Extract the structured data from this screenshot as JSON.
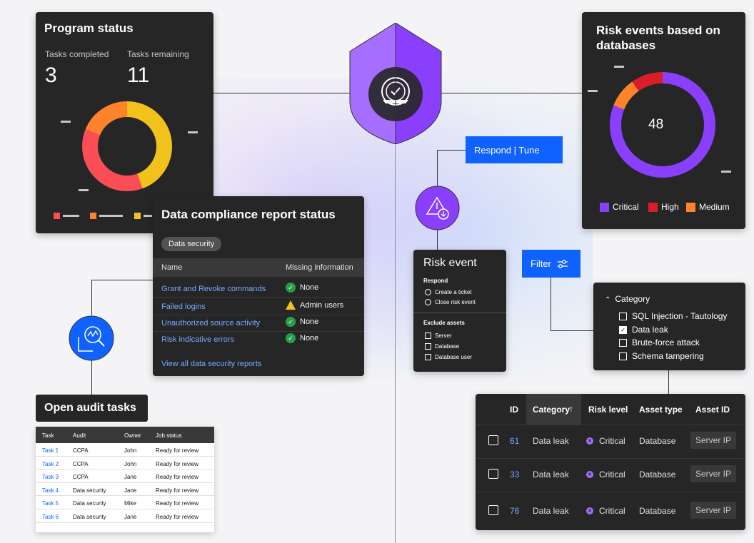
{
  "program_status": {
    "title": "Program status",
    "tasks_completed_label": "Tasks completed",
    "tasks_completed_value": "3",
    "tasks_remaining_label": "Tasks remaining",
    "tasks_remaining_value": "11",
    "donut_colors": [
      "#f1c21b",
      "#fa4d56",
      "#ff832b"
    ]
  },
  "risk_db": {
    "title": "Risk events based on databases",
    "center_value": "48",
    "legend": [
      {
        "label": "Critical",
        "color": "#8a3ffc"
      },
      {
        "label": "High",
        "color": "#da1e28"
      },
      {
        "label": "Medium",
        "color": "#ff832b"
      }
    ]
  },
  "buttons": {
    "respond": "Respond | Tune",
    "filter": "Filter"
  },
  "compliance": {
    "title": "Data compliance report status",
    "tag": "Data security",
    "col_name": "Name",
    "col_missing": "Missing information",
    "rows": [
      {
        "name": "Grant and Revoke commands",
        "missing": "None",
        "status": "ok"
      },
      {
        "name": "Failed logins",
        "missing": "Admin users",
        "status": "warn"
      },
      {
        "name": "Unauthorized source activity",
        "missing": "None",
        "status": "ok"
      },
      {
        "name": "Risk indicative errors",
        "missing": "None",
        "status": "ok"
      }
    ],
    "view_all": "View all data security reports"
  },
  "risk_event": {
    "title": "Risk event",
    "respond_label": "Respond",
    "respond_options": [
      "Create a ticket",
      "Close risk event"
    ],
    "exclude_label": "Exclude assets",
    "exclude_options": [
      "Server",
      "Database",
      "Database user"
    ]
  },
  "category_filter": {
    "heading": "Category",
    "options": [
      {
        "label": "SQL Injection - Tautology",
        "checked": false
      },
      {
        "label": "Data leak",
        "checked": true
      },
      {
        "label": "Brute-force attack",
        "checked": false
      },
      {
        "label": "Schema tampering",
        "checked": false
      }
    ]
  },
  "audit": {
    "title": "Open audit tasks",
    "headers": [
      "Task",
      "Audit",
      "Owner",
      "Job status"
    ],
    "rows": [
      [
        "Task 1",
        "CCPA",
        "John",
        "Ready for review"
      ],
      [
        "Task 2",
        "CCPA",
        "John",
        "Ready for review"
      ],
      [
        "Task 3",
        "CCPA",
        "Jane",
        "Ready for review"
      ],
      [
        "Task 4",
        "Data security",
        "Jane",
        "Ready for review"
      ],
      [
        "Task 5",
        "Data security",
        "Mike",
        "Ready for review"
      ],
      [
        "Task 6",
        "Data security",
        "Jane",
        "Ready for review"
      ]
    ]
  },
  "risk_table": {
    "headers": {
      "id": "ID",
      "category": "Category",
      "risk": "Risk level",
      "asset_type": "Asset type",
      "asset_id": "Asset ID"
    },
    "rows": [
      {
        "id": "61",
        "category": "Data leak",
        "risk": "Critical",
        "asset_type": "Database",
        "asset_id": "Server IP"
      },
      {
        "id": "33",
        "category": "Data leak",
        "risk": "Critical",
        "asset_type": "Database",
        "asset_id": "Server IP"
      },
      {
        "id": "76",
        "category": "Data leak",
        "risk": "Critical",
        "asset_type": "Database",
        "asset_id": "Server IP"
      }
    ]
  }
}
